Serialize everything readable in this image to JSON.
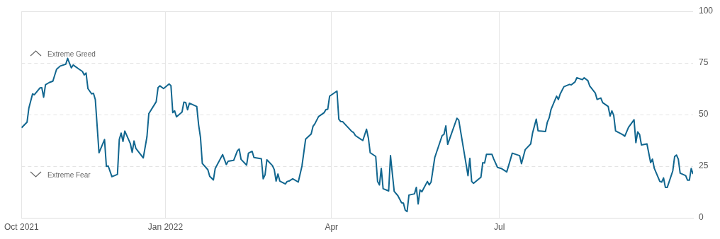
{
  "chart_data": {
    "type": "line",
    "xlim": [
      "2021-10-15",
      "2022-10-14"
    ],
    "xticks": [
      {
        "value": "2021-10-15",
        "label": "Oct 2021"
      },
      {
        "value": "2022-01-01",
        "label": "Jan 2022"
      },
      {
        "value": "2022-04-01",
        "label": "Apr"
      },
      {
        "value": "2022-07-01",
        "label": "Jul"
      }
    ],
    "ylim": [
      0,
      100
    ],
    "yticks": [
      0,
      25,
      50,
      75,
      100
    ],
    "grid": true,
    "legend": false,
    "marker": "none",
    "line_style": "solid",
    "annotations": [
      "Extreme Greed",
      "Extreme Fear"
    ],
    "x": [
      "2021-10-15",
      "2021-10-18",
      "2021-10-19",
      "2021-10-21",
      "2021-10-22",
      "2021-10-25",
      "2021-10-26",
      "2021-10-27",
      "2021-10-28",
      "2021-10-30",
      "2021-11-01",
      "2021-11-03",
      "2021-11-05",
      "2021-11-08",
      "2021-11-09",
      "2021-11-11",
      "2021-11-12",
      "2021-11-15",
      "2021-11-17",
      "2021-11-18",
      "2021-11-19",
      "2021-11-20",
      "2021-11-22",
      "2021-11-23",
      "2021-11-24",
      "2021-11-26",
      "2021-11-29",
      "2021-11-30",
      "2021-12-01",
      "2021-12-03",
      "2021-12-06",
      "2021-12-07",
      "2021-12-08",
      "2021-12-09",
      "2021-12-10",
      "2021-12-13",
      "2021-12-14",
      "2021-12-15",
      "2021-12-16",
      "2021-12-20",
      "2021-12-22",
      "2021-12-23",
      "2021-12-27",
      "2021-12-28",
      "2021-12-29",
      "2021-12-31",
      "2022-01-03",
      "2022-01-04",
      "2022-01-05",
      "2022-01-06",
      "2022-01-07",
      "2022-01-10",
      "2022-01-11",
      "2022-01-12",
      "2022-01-13",
      "2022-01-14",
      "2022-01-18",
      "2022-01-19",
      "2022-01-20",
      "2022-01-21",
      "2022-01-24",
      "2022-01-25",
      "2022-01-27",
      "2022-01-28",
      "2022-02-01",
      "2022-02-03",
      "2022-02-04",
      "2022-02-07",
      "2022-02-09",
      "2022-02-10",
      "2022-02-11",
      "2022-02-14",
      "2022-02-15",
      "2022-02-17",
      "2022-02-18",
      "2022-02-22",
      "2022-02-23",
      "2022-02-24",
      "2022-02-25",
      "2022-02-28",
      "2022-03-01",
      "2022-03-02",
      "2022-03-03",
      "2022-03-04",
      "2022-03-07",
      "2022-03-08",
      "2022-03-09",
      "2022-03-11",
      "2022-03-14",
      "2022-03-16",
      "2022-03-18",
      "2022-03-21",
      "2022-03-22",
      "2022-03-23",
      "2022-03-25",
      "2022-03-28",
      "2022-03-29",
      "2022-03-30",
      "2022-03-31",
      "2022-04-04",
      "2022-04-05",
      "2022-04-06",
      "2022-04-07",
      "2022-04-12",
      "2022-04-13",
      "2022-04-14",
      "2022-04-18",
      "2022-04-20",
      "2022-04-21",
      "2022-04-22",
      "2022-04-25",
      "2022-04-26",
      "2022-04-27",
      "2022-04-28",
      "2022-04-29",
      "2022-05-02",
      "2022-05-03",
      "2022-05-05",
      "2022-05-07",
      "2022-05-09",
      "2022-05-10",
      "2022-05-11",
      "2022-05-12",
      "2022-05-13",
      "2022-05-16",
      "2022-05-17",
      "2022-05-18",
      "2022-05-19",
      "2022-05-20",
      "2022-05-23",
      "2022-05-24",
      "2022-05-25",
      "2022-05-27",
      "2022-05-31",
      "2022-06-01",
      "2022-06-02",
      "2022-06-03",
      "2022-06-08",
      "2022-06-09",
      "2022-06-14",
      "2022-06-15",
      "2022-06-16",
      "2022-06-17",
      "2022-06-20",
      "2022-06-21",
      "2022-06-22",
      "2022-06-23",
      "2022-06-24",
      "2022-06-27",
      "2022-06-28",
      "2022-06-30",
      "2022-07-02",
      "2022-07-05",
      "2022-07-08",
      "2022-07-12",
      "2022-07-13",
      "2022-07-15",
      "2022-07-18",
      "2022-07-19",
      "2022-07-21",
      "2022-07-22",
      "2022-07-26",
      "2022-07-27",
      "2022-07-28",
      "2022-07-29",
      "2022-08-01",
      "2022-08-02",
      "2022-08-03",
      "2022-08-05",
      "2022-08-08",
      "2022-08-09",
      "2022-08-11",
      "2022-08-12",
      "2022-08-15",
      "2022-08-16",
      "2022-08-18",
      "2022-08-19",
      "2022-08-22",
      "2022-08-23",
      "2022-08-25",
      "2022-08-26",
      "2022-08-29",
      "2022-08-30",
      "2022-08-31",
      "2022-09-01",
      "2022-09-02",
      "2022-09-06",
      "2022-09-07",
      "2022-09-09",
      "2022-09-12",
      "2022-09-13",
      "2022-09-14",
      "2022-09-15",
      "2022-09-16",
      "2022-09-19",
      "2022-09-21",
      "2022-09-22",
      "2022-09-23",
      "2022-09-26",
      "2022-09-27",
      "2022-09-28",
      "2022-09-29",
      "2022-09-30",
      "2022-10-03",
      "2022-10-04",
      "2022-10-05",
      "2022-10-06",
      "2022-10-07",
      "2022-10-10",
      "2022-10-11",
      "2022-10-12",
      "2022-10-13",
      "2022-10-14"
    ],
    "series": [
      {
        "color": "#11668f",
        "values": [
          43.6,
          46.3,
          53.2,
          60,
          59.6,
          62.9,
          63,
          58.4,
          64.4,
          65.5,
          66.2,
          71.9,
          73.5,
          74.4,
          77.2,
          72.6,
          74,
          72.1,
          70.9,
          69.2,
          70.1,
          62.6,
          60,
          60.3,
          57.3,
          31.5,
          37.9,
          24.9,
          25.1,
          19.9,
          21,
          37.9,
          41,
          37,
          42,
          35.9,
          31.7,
          37.2,
          33.6,
          29,
          39.3,
          50.4,
          56.2,
          63,
          63.9,
          62.6,
          64.8,
          64,
          50.9,
          51.8,
          48.9,
          51.2,
          56,
          55.8,
          52.3,
          55.5,
          53.9,
          45,
          39,
          26.3,
          23.3,
          20.1,
          18.3,
          23.9,
          30.6,
          25.8,
          27.4,
          27.8,
          32.4,
          33.3,
          28.3,
          25.5,
          31.3,
          32.2,
          29.2,
          28.6,
          18.9,
          20.8,
          28.1,
          25.3,
          23.3,
          17.8,
          21.2,
          17.8,
          16.4,
          17.6,
          17.8,
          18.9,
          17.3,
          25,
          38.1,
          40.6,
          44.3,
          45.5,
          49,
          50.9,
          52.4,
          52.6,
          58.9,
          61.4,
          47.7,
          46.6,
          46.6,
          41.8,
          41.3,
          39.8,
          37.4,
          42.9,
          38.7,
          31.5,
          29.7,
          17.6,
          15.9,
          23.9,
          14.1,
          13,
          30.1,
          12.8,
          10.7,
          7.3,
          7.1,
          3.7,
          3,
          11,
          11.6,
          14.7,
          6.7,
          13.5,
          12.6,
          17.6,
          15.9,
          17.3,
          29.2,
          39.8,
          40.4,
          44.5,
          35.6,
          48.2,
          47.3,
          20.4,
          28.8,
          17.6,
          16.7,
          18.9,
          19.6,
          26.7,
          26.5,
          30.7,
          30.7,
          28.4,
          24.4,
          23.9,
          22.2,
          31.3,
          30.1,
          26.2,
          33,
          35.8,
          41,
          47.8,
          42.1,
          41.8,
          46.3,
          48.4,
          52.4,
          58.9,
          57.3,
          60,
          63.5,
          64.6,
          64.4,
          65.8,
          67.8,
          66.9,
          67.8,
          66.4,
          63.8,
          60.4,
          57.3,
          58,
          55.8,
          53.9,
          49.3,
          51.8,
          49.5,
          42.1,
          40.2,
          39.5,
          43.8,
          47.5,
          36.4,
          41.6,
          40.4,
          35.3,
          35.8,
          26.7,
          28.4,
          23.9,
          17.6,
          17.3,
          19.3,
          14.7,
          14.7,
          22.7,
          29.6,
          30.4,
          28.4,
          21.6,
          20.4,
          18.2,
          18.2,
          23.9,
          21.2
        ]
      }
    ]
  }
}
